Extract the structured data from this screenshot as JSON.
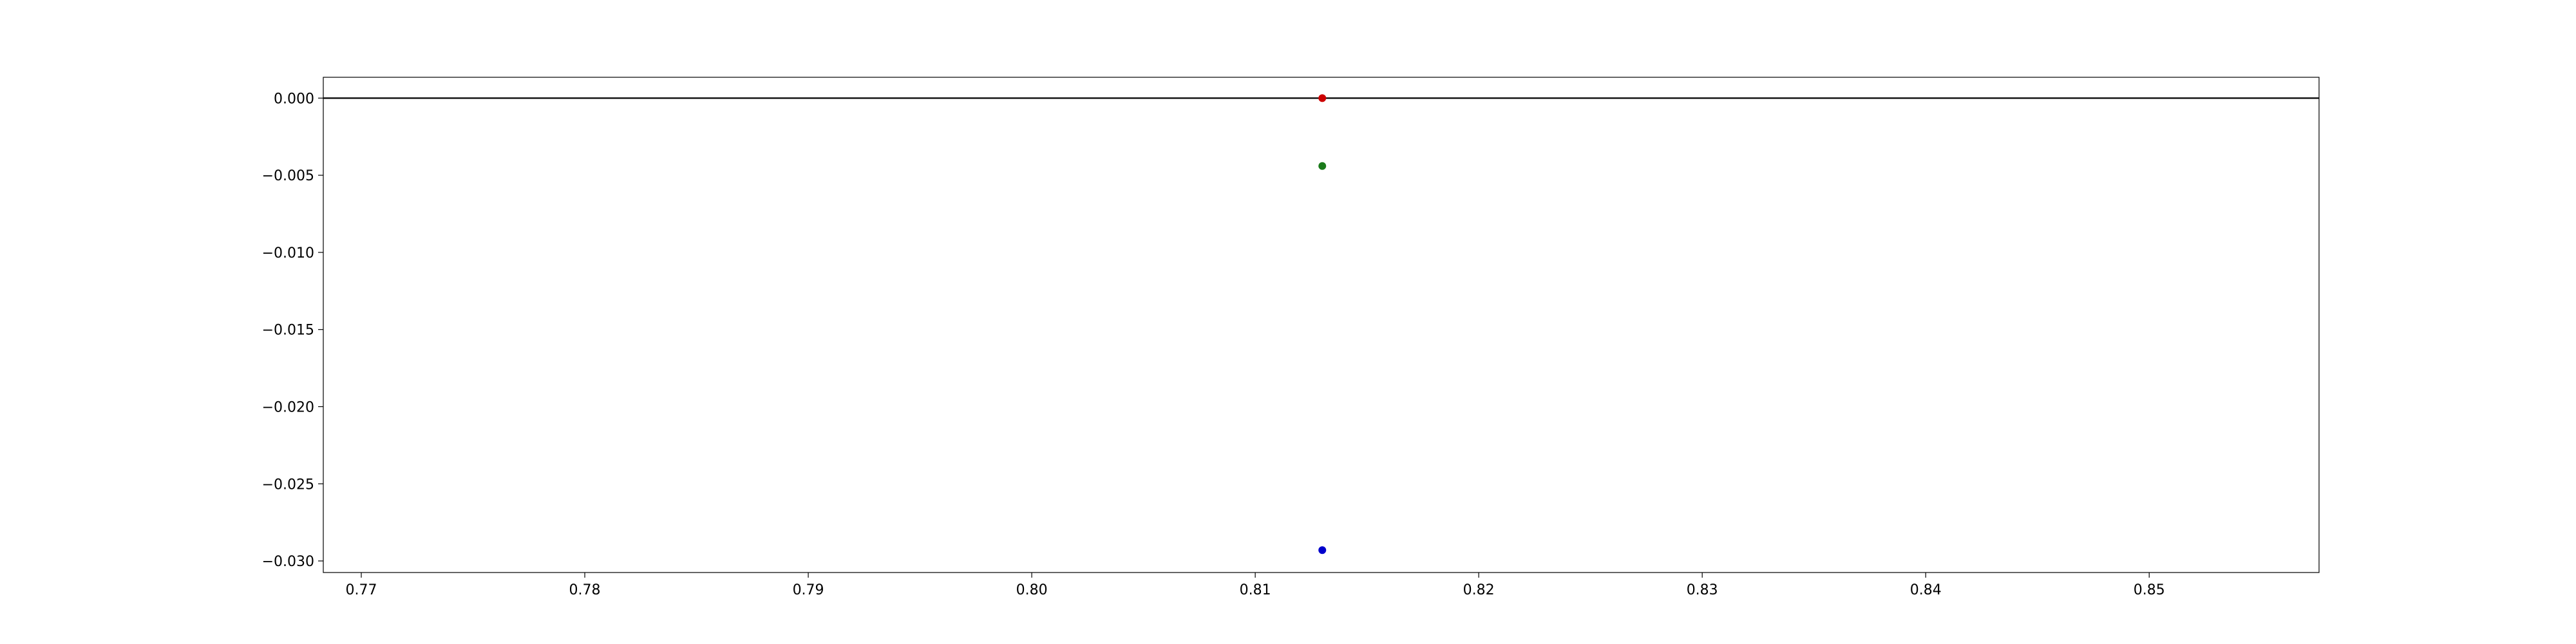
{
  "chart_data": {
    "type": "scatter",
    "title": "",
    "xlabel": "",
    "ylabel": "",
    "xlim": [
      0.7683,
      0.8576
    ],
    "ylim": [
      -0.03075,
      0.00135
    ],
    "xticks": [
      0.77,
      0.78,
      0.79,
      0.8,
      0.81,
      0.82,
      0.83,
      0.84,
      0.85
    ],
    "xtick_labels": [
      "0.77",
      "0.78",
      "0.79",
      "0.80",
      "0.81",
      "0.82",
      "0.83",
      "0.84",
      "0.85"
    ],
    "yticks": [
      0.0,
      -0.005,
      -0.01,
      -0.015,
      -0.02,
      -0.025,
      -0.03
    ],
    "ytick_labels": [
      "0.000",
      "−0.005",
      "−0.010",
      "−0.015",
      "−0.020",
      "−0.025",
      "−0.030"
    ],
    "reference_line": {
      "y": 0.0,
      "color": "#000000"
    },
    "grid": false,
    "legend": "none",
    "points": [
      {
        "x": 0.813,
        "y": 0.0,
        "color": "#cc0000"
      },
      {
        "x": 0.813,
        "y": -0.0044,
        "color": "#1a7a1a"
      },
      {
        "x": 0.813,
        "y": -0.0293,
        "color": "#0000cc"
      }
    ]
  }
}
